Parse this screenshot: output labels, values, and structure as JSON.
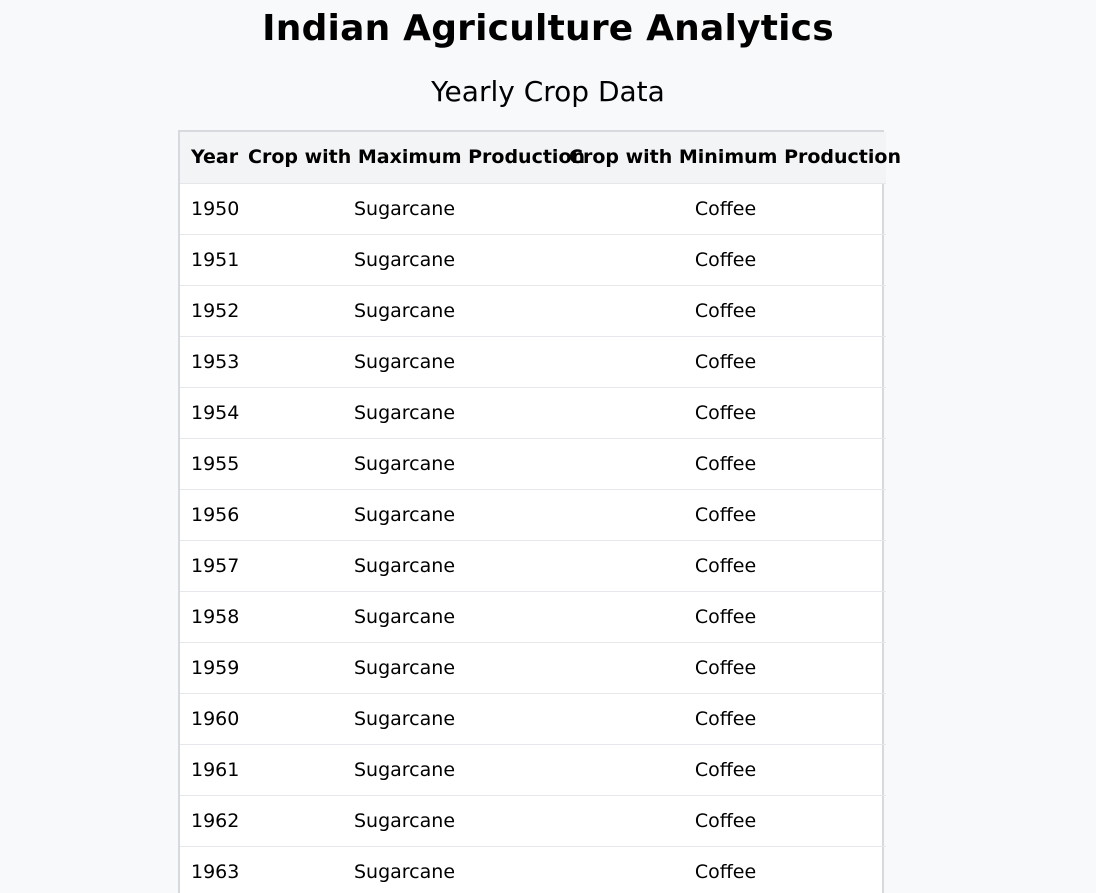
{
  "page": {
    "title": "Indian Agriculture Analytics",
    "subtitle": "Yearly Crop Data"
  },
  "table": {
    "headers": [
      "Year",
      "Crop with Maximum Production",
      "Crop with Minimum Production"
    ],
    "rows": [
      {
        "year": "1950",
        "max": "Sugarcane",
        "min": "Coffee"
      },
      {
        "year": "1951",
        "max": "Sugarcane",
        "min": "Coffee"
      },
      {
        "year": "1952",
        "max": "Sugarcane",
        "min": "Coffee"
      },
      {
        "year": "1953",
        "max": "Sugarcane",
        "min": "Coffee"
      },
      {
        "year": "1954",
        "max": "Sugarcane",
        "min": "Coffee"
      },
      {
        "year": "1955",
        "max": "Sugarcane",
        "min": "Coffee"
      },
      {
        "year": "1956",
        "max": "Sugarcane",
        "min": "Coffee"
      },
      {
        "year": "1957",
        "max": "Sugarcane",
        "min": "Coffee"
      },
      {
        "year": "1958",
        "max": "Sugarcane",
        "min": "Coffee"
      },
      {
        "year": "1959",
        "max": "Sugarcane",
        "min": "Coffee"
      },
      {
        "year": "1960",
        "max": "Sugarcane",
        "min": "Coffee"
      },
      {
        "year": "1961",
        "max": "Sugarcane",
        "min": "Coffee"
      },
      {
        "year": "1962",
        "max": "Sugarcane",
        "min": "Coffee"
      },
      {
        "year": "1963",
        "max": "Sugarcane",
        "min": "Coffee"
      }
    ]
  }
}
